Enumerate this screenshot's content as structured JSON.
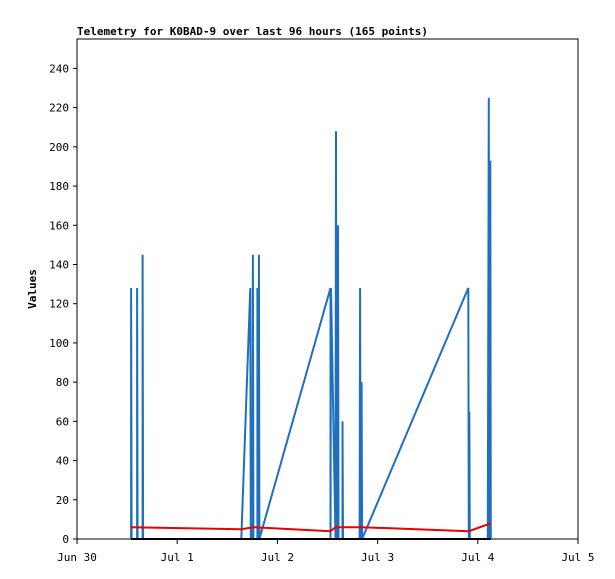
{
  "chart_data": {
    "type": "line",
    "title": "Telemetry for K0BAD-9 over last 96 hours (165 points)",
    "ylabel": "Values",
    "xlabel": "",
    "xlim": [
      0,
      5
    ],
    "ylim": [
      0,
      255
    ],
    "x_ticks": [
      {
        "x": 0,
        "label": "Jun 30"
      },
      {
        "x": 1,
        "label": "Jul 1"
      },
      {
        "x": 2,
        "label": "Jul 2"
      },
      {
        "x": 3,
        "label": "Jul 3"
      },
      {
        "x": 4,
        "label": "Jul 4"
      },
      {
        "x": 5,
        "label": "Jul 5"
      }
    ],
    "y_ticks": [
      0,
      20,
      40,
      60,
      80,
      100,
      120,
      140,
      160,
      180,
      200,
      220,
      240
    ],
    "grid": false,
    "colors": {
      "series_blue": "#1f6fbf",
      "series_red": "#e60000",
      "series_black": "#000000"
    },
    "series": [
      {
        "color": "#1f6fbf",
        "points": [
          [
            0.54,
            0
          ],
          [
            0.54,
            128
          ],
          [
            0.545,
            0
          ],
          [
            0.6,
            0
          ],
          [
            0.6,
            128
          ],
          [
            0.605,
            0
          ],
          [
            0.655,
            0
          ],
          [
            0.655,
            145
          ],
          [
            0.66,
            0
          ],
          [
            1.64,
            0
          ],
          [
            1.73,
            128
          ],
          [
            1.735,
            0
          ],
          [
            1.75,
            0
          ],
          [
            1.755,
            145
          ],
          [
            1.76,
            0
          ],
          [
            1.8,
            0
          ],
          [
            1.8,
            128
          ],
          [
            1.805,
            0
          ],
          [
            1.815,
            0
          ],
          [
            1.815,
            145
          ],
          [
            1.82,
            0
          ],
          [
            2.53,
            128
          ],
          [
            2.53,
            0
          ],
          [
            2.535,
            128
          ],
          [
            2.58,
            0
          ],
          [
            2.585,
            208
          ],
          [
            2.59,
            0
          ],
          [
            2.6,
            0
          ],
          [
            2.605,
            160
          ],
          [
            2.61,
            0
          ],
          [
            2.65,
            0
          ],
          [
            2.65,
            60
          ],
          [
            2.655,
            0
          ],
          [
            2.82,
            0
          ],
          [
            2.825,
            128
          ],
          [
            2.83,
            0
          ],
          [
            2.835,
            0
          ],
          [
            2.84,
            80
          ],
          [
            2.845,
            0
          ],
          [
            3.905,
            128
          ],
          [
            3.91,
            0
          ],
          [
            3.915,
            65
          ],
          [
            3.92,
            0
          ],
          [
            4.1,
            0
          ],
          [
            4.11,
            225
          ],
          [
            4.115,
            0
          ],
          [
            4.12,
            0
          ],
          [
            4.125,
            193
          ],
          [
            4.13,
            0
          ]
        ]
      },
      {
        "color": "#e60000",
        "points": [
          [
            0.54,
            6
          ],
          [
            1.64,
            5
          ],
          [
            1.76,
            6
          ],
          [
            2.53,
            4
          ],
          [
            2.58,
            6
          ],
          [
            2.84,
            6
          ],
          [
            3.91,
            4
          ],
          [
            4.13,
            8
          ]
        ]
      },
      {
        "color": "#000000",
        "points": [
          [
            0.54,
            0
          ],
          [
            4.13,
            0
          ]
        ]
      }
    ]
  }
}
